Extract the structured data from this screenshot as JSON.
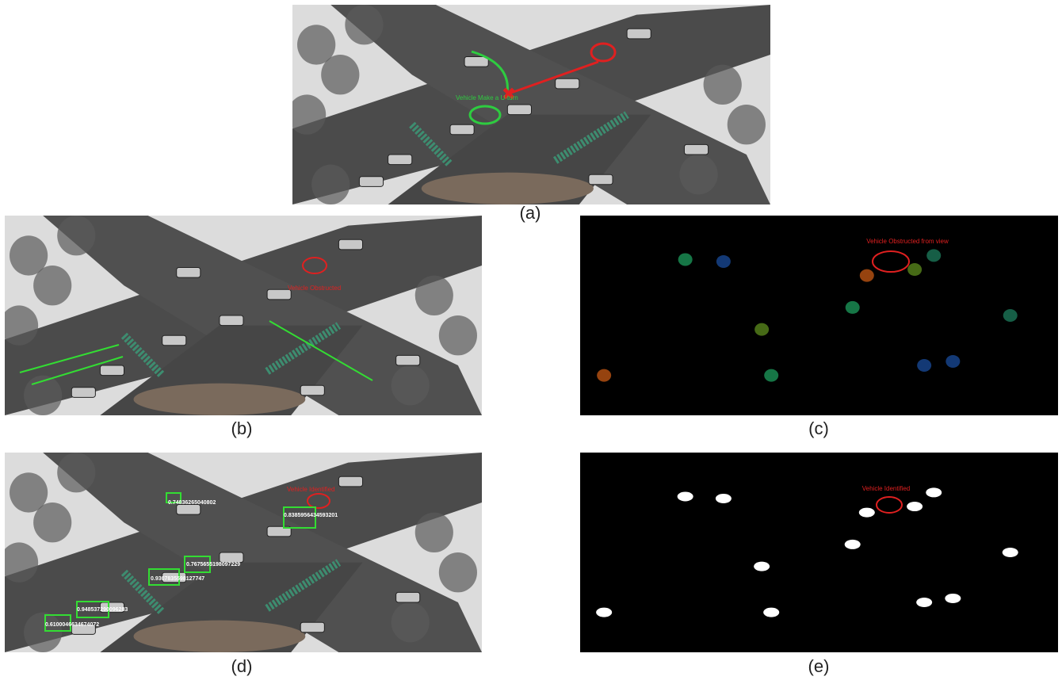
{
  "panels": [
    {
      "caption": "(a)",
      "annotations": [
        "Vehicle Make a U-turn"
      ]
    },
    {
      "caption": "(b)",
      "annotations": [
        "Vehicle Obstructed"
      ]
    },
    {
      "caption": "(c)",
      "annotations": [
        "Vehicle Obstructed from view"
      ]
    },
    {
      "caption": "(d)",
      "annotations": [
        "Vehicle Identified",
        "0.74836265040802",
        "0.8385956434593201",
        "0.7675655198097229",
        "0.9307835598127747",
        "0.948537290096283",
        "0.6100046634674072"
      ]
    },
    {
      "caption": "(e)",
      "annotations": [
        "Vehicle Identified"
      ]
    }
  ]
}
